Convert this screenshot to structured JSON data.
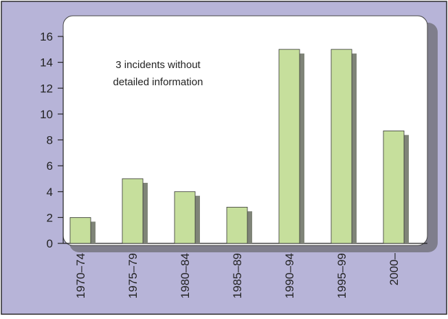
{
  "chart_data": {
    "type": "bar",
    "categories": [
      "1970–74",
      "1975–79",
      "1980–84",
      "1985–89",
      "1990–94",
      "1995–99",
      "2000–"
    ],
    "values": [
      2,
      5,
      4,
      2.8,
      15,
      15,
      8.7
    ],
    "ylim": [
      0,
      16
    ],
    "yticks": [
      0,
      2,
      4,
      6,
      8,
      10,
      12,
      14,
      16
    ],
    "grid": false,
    "legend": "none",
    "annotation": "3 incidents without detailed information"
  },
  "colors": {
    "bar_fill": "#c6df9c",
    "bar_shadow": "#7f8478",
    "frame": "#b7b4d8",
    "plot_bg": "#ffffff",
    "axis": "#222222"
  }
}
